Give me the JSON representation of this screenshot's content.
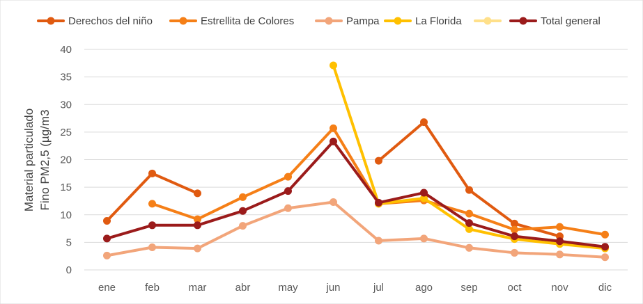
{
  "chart_data": {
    "type": "line",
    "title": "",
    "xlabel": "",
    "ylabel_line1": "Material particulado",
    "ylabel_line2": "Fino PM2,5 (µg/m3",
    "ylim": [
      0,
      40
    ],
    "yticks": [
      0,
      5,
      10,
      15,
      20,
      25,
      30,
      35,
      40
    ],
    "ytick_labels": [
      "0",
      "5",
      "10",
      "15",
      "20",
      "25",
      "30",
      "35",
      "40"
    ],
    "grid": true,
    "legend_position": "top",
    "categories": [
      "ene",
      "feb",
      "mar",
      "abr",
      "may",
      "jun",
      "jul",
      "ago",
      "sep",
      "oct",
      "nov",
      "dic"
    ],
    "series": [
      {
        "name": "Derechos del niño",
        "color": "#E05A10",
        "values": [
          8.9,
          17.5,
          13.9,
          null,
          null,
          null,
          19.8,
          26.8,
          14.5,
          8.4,
          6.1,
          null
        ]
      },
      {
        "name": "Estrellita de Colores",
        "color": "#F57F17",
        "values": [
          null,
          12.0,
          9.2,
          13.2,
          16.9,
          25.7,
          12.0,
          12.6,
          10.2,
          7.3,
          7.8,
          6.4
        ]
      },
      {
        "name": "Pampa",
        "color": "#F2A57A",
        "values": [
          2.6,
          4.1,
          3.9,
          8.0,
          11.2,
          12.3,
          5.3,
          5.7,
          4.0,
          3.1,
          2.8,
          2.3
        ]
      },
      {
        "name": "La Florida",
        "color": "#FFC000",
        "values": [
          null,
          null,
          null,
          null,
          null,
          37.1,
          12.0,
          13.0,
          7.4,
          5.6,
          4.7,
          3.9
        ]
      },
      {
        "name": "",
        "color": "#FFE08A",
        "values": [
          null,
          null,
          null,
          null,
          null,
          null,
          null,
          null,
          null,
          null,
          null,
          null
        ]
      },
      {
        "name": "Total general",
        "color": "#9B1B1B",
        "values": [
          5.7,
          8.1,
          8.1,
          10.7,
          14.3,
          23.3,
          12.2,
          14.0,
          8.5,
          6.1,
          5.2,
          4.2
        ]
      }
    ]
  }
}
